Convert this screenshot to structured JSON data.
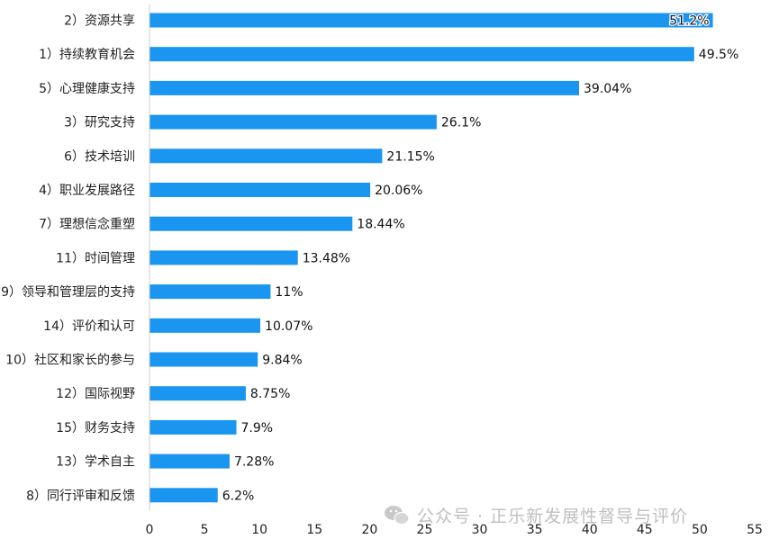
{
  "chart_data": {
    "type": "bar",
    "orientation": "horizontal",
    "categories": [
      "2）资源共享",
      "1）持续教育机会",
      "5）心理健康支持",
      "3）研究支持",
      "6）技术培训",
      "4）职业发展路径",
      "7）理想信念重塑",
      "11）时间管理",
      "9）领导和管理层的支持",
      "14）评价和认可",
      "10）社区和家长的参与",
      "12）国际视野",
      "15）财务支持",
      "13）学术自主",
      "8）同行评审和反馈"
    ],
    "values": [
      51.2,
      49.5,
      39.04,
      26.1,
      21.15,
      20.06,
      18.44,
      13.48,
      11,
      10.07,
      9.84,
      8.75,
      7.9,
      7.28,
      6.2
    ],
    "value_labels": [
      "51.2%",
      "49.5%",
      "39.04%",
      "26.1%",
      "21.15%",
      "20.06%",
      "18.44%",
      "13.48%",
      "11%",
      "10.07%",
      "9.84%",
      "8.75%",
      "7.9%",
      "7.28%",
      "6.2%"
    ],
    "x_ticks": [
      "0",
      "5",
      "10",
      "15",
      "20",
      "25",
      "30",
      "35",
      "40",
      "45",
      "50",
      "55"
    ],
    "xlim": [
      0,
      55
    ],
    "grid": false,
    "legend": "none",
    "bar_color": "#1a96f0"
  },
  "watermark": {
    "icon": "wechat-icon",
    "text": "公众号 · 正乐新发展性督导与评价"
  }
}
